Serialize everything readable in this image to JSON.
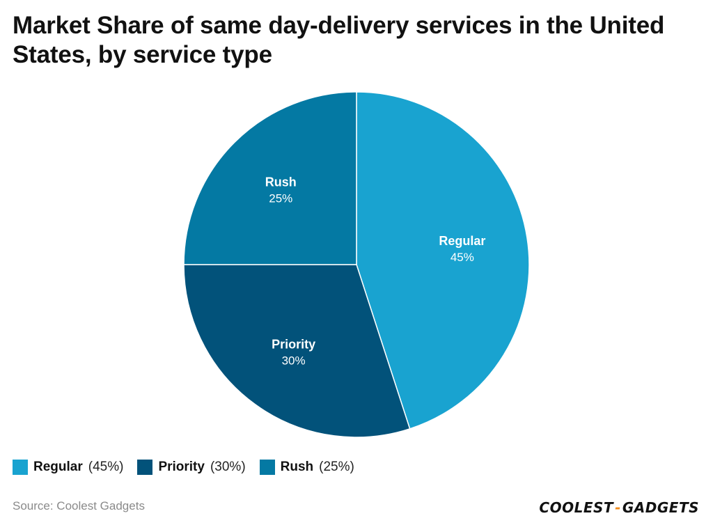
{
  "chart_data": {
    "type": "pie",
    "title": "Market Share of same day-delivery services in the United States, by service type",
    "slices": [
      {
        "name": "Regular",
        "value": 45,
        "label": "45%",
        "color": "#19a3d0"
      },
      {
        "name": "Priority",
        "value": 30,
        "label": "30%",
        "color": "#02527a"
      },
      {
        "name": "Rush",
        "value": 25,
        "label": "25%",
        "color": "#0479a3"
      }
    ],
    "legend_placement": "bottom-left",
    "start_angle": "top",
    "direction": "clockwise"
  },
  "legend": [
    {
      "name": "Regular",
      "pct": "(45%)",
      "color": "#19a3d0"
    },
    {
      "name": "Priority",
      "pct": "(30%)",
      "color": "#02527a"
    },
    {
      "name": "Rush",
      "pct": "(25%)",
      "color": "#0479a3"
    }
  ],
  "footer": {
    "source": "Source: Coolest Gadgets",
    "brand_left": "COOLEST",
    "brand_dash": "-",
    "brand_right": "GADGETS"
  }
}
